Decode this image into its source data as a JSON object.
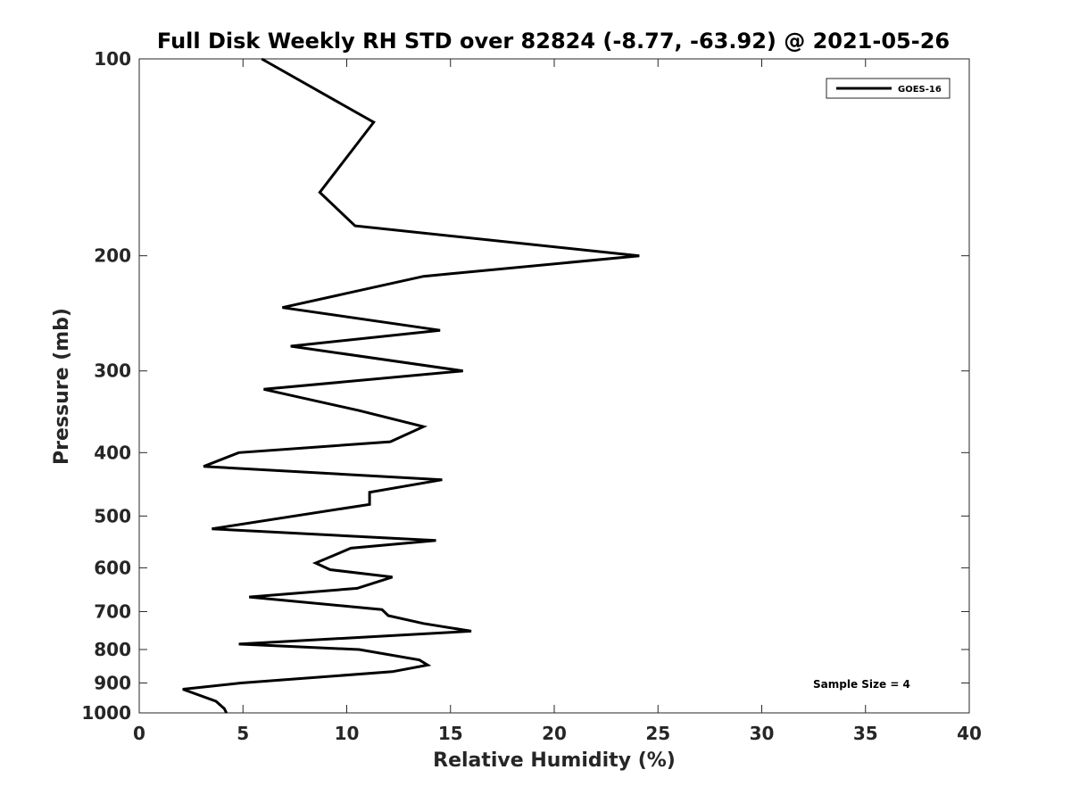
{
  "chart_data": {
    "type": "line",
    "title": "Full Disk Weekly RH STD over 82824 (-8.77, -63.92) @ 2021-05-26",
    "xlabel": "Relative Humidity (%)",
    "ylabel": "Pressure (mb)",
    "xlim": [
      0,
      40
    ],
    "ylim": [
      100,
      1000
    ],
    "y_scale": "log",
    "y_reversed": true,
    "x_ticks": [
      0,
      5,
      10,
      15,
      20,
      25,
      30,
      35,
      40
    ],
    "y_ticks": [
      100,
      200,
      300,
      400,
      500,
      600,
      700,
      800,
      900,
      1000
    ],
    "grid": false,
    "legend_position": "top-right",
    "series": [
      {
        "name": "GOES-16",
        "color": "#000000",
        "x": [
          5.9,
          11.3,
          8.7,
          10.4,
          24.1,
          13.7,
          6.9,
          14.5,
          7.3,
          15.6,
          6.0,
          10.6,
          13.7,
          12.1,
          4.8,
          3.1,
          14.6,
          11.1,
          11.1,
          3.5,
          14.3,
          10.2,
          8.5,
          9.2,
          12.2,
          10.5,
          5.3,
          11.7,
          12.0,
          13.7,
          16.0,
          4.8,
          10.6,
          13.5,
          13.9,
          12.2,
          4.9,
          2.1,
          3.7,
          4.1,
          4.2
        ],
        "y": [
          100,
          125,
          160,
          180,
          200,
          215,
          240,
          260,
          275,
          300,
          320,
          345,
          365,
          385,
          400,
          420,
          440,
          460,
          480,
          523,
          545,
          560,
          590,
          604,
          620,
          645,
          665,
          695,
          710,
          730,
          750,
          785,
          800,
          830,
          845,
          865,
          900,
          920,
          960,
          985,
          1000
        ]
      }
    ],
    "annotations": [
      "Sample Size = 4"
    ]
  }
}
